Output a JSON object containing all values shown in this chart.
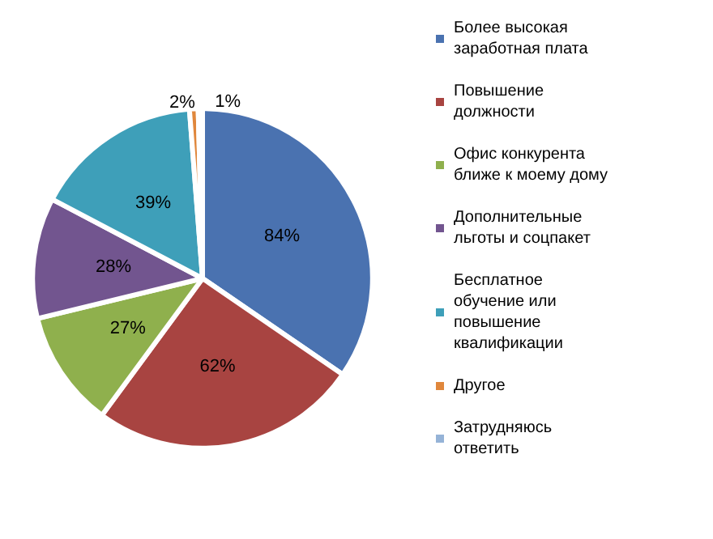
{
  "chart_data": {
    "type": "pie",
    "categories": [
      "Более высокая заработная плата",
      "Повышение  должности",
      "Офис конкурента ближе к моему дому",
      "Дополнительные льготы и соцпакет",
      "Бесплатное обучение или повышение квалификации",
      "Другое",
      "Затрудняюсь ответить"
    ],
    "values": [
      84,
      62,
      27,
      28,
      39,
      2,
      1
    ],
    "value_labels": [
      "84%",
      "62%",
      "27%",
      "28%",
      "39%",
      "2%",
      "1%"
    ],
    "colors": [
      "#4a72b0",
      "#a84441",
      "#8fb04d",
      "#72558f",
      "#3e9fb9",
      "#e0873c",
      "#95b3d7"
    ],
    "legend": "right"
  }
}
